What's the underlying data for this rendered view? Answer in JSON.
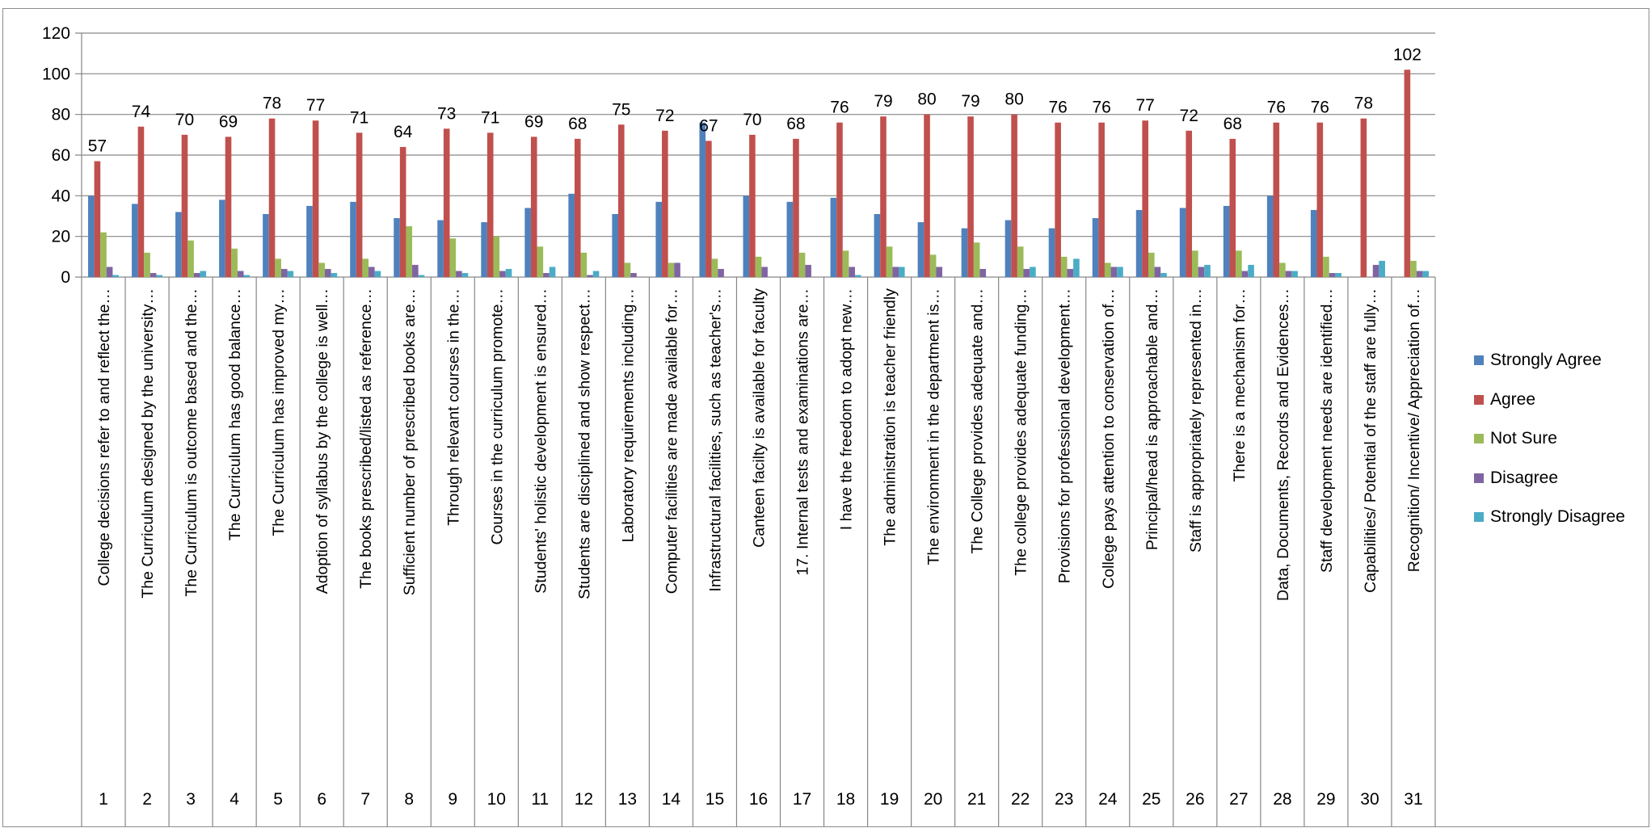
{
  "chart_data": {
    "type": "bar",
    "title": "",
    "xlabel": "",
    "ylabel": "",
    "ylim": [
      0,
      120
    ],
    "yticks": [
      0,
      20,
      40,
      60,
      80,
      100,
      120
    ],
    "grid": true,
    "legend_position": "right",
    "categories": [
      "1",
      "2",
      "3",
      "4",
      "5",
      "6",
      "7",
      "8",
      "9",
      "10",
      "11",
      "12",
      "13",
      "14",
      "15",
      "16",
      "17",
      "18",
      "19",
      "20",
      "21",
      "22",
      "23",
      "24",
      "25",
      "26",
      "27",
      "28",
      "29",
      "30",
      "31"
    ],
    "statements": [
      "College decisions refer to and reflect the…",
      "The Curriculum designed by the university…",
      "The Curriculum is outcome based and the…",
      "The Curriculum has good balance…",
      "The Curriculum has improved my…",
      "Adoption of syllabus by the college is well…",
      "The books prescribed/listed as reference…",
      "Sufficient number of prescribed books are…",
      "Through relevant courses in the…",
      "Courses in the curriculum promote…",
      "Students' holistic development is ensured…",
      "Students are disciplined and show respect…",
      "Laboratory requirements including…",
      "Computer facilities are made available for…",
      "Infrastructural facilities, such as teacher's…",
      "Canteen facilty is available for faculty",
      "17. Internal tests and examinations are…",
      "I have the freedom to adopt new…",
      "The administration is teacher friendly",
      "The environment in the department is…",
      "The College provides adequate and…",
      "The college provides adequate funding…",
      "Provisions for professional development…",
      "College pays attention to conservation of…",
      "Principal/head is approachable and…",
      "Staff is appropriately represented in…",
      "There is a mechanism for…",
      "Data, Documents, Records and Evidences…",
      "Staff development needs are identified…",
      "Capabilities/ Potential of the staff are fully…",
      "Recognition/ Incentive/ Appreciation of…"
    ],
    "series": [
      {
        "name": "Strongly Agree",
        "color": "#4F81BD",
        "values": [
          40,
          36,
          32,
          38,
          31,
          35,
          37,
          29,
          28,
          27,
          34,
          41,
          31,
          37,
          76,
          40,
          37,
          39,
          31,
          27,
          24,
          28,
          24,
          29,
          33,
          34,
          35,
          40,
          33,
          0,
          0
        ]
      },
      {
        "name": "Agree",
        "color": "#C0504D",
        "values": [
          57,
          74,
          70,
          69,
          78,
          77,
          71,
          64,
          73,
          71,
          69,
          68,
          75,
          72,
          67,
          70,
          68,
          76,
          79,
          80,
          79,
          80,
          76,
          76,
          77,
          72,
          68,
          76,
          76,
          78,
          102
        ]
      },
      {
        "name": "Not Sure",
        "color": "#9BBB59",
        "values": [
          22,
          12,
          18,
          14,
          9,
          7,
          9,
          25,
          19,
          20,
          15,
          12,
          7,
          7,
          9,
          10,
          12,
          13,
          15,
          11,
          17,
          15,
          10,
          7,
          12,
          13,
          13,
          7,
          10,
          0,
          8
        ]
      },
      {
        "name": "Disagree",
        "color": "#8064A2",
        "values": [
          5,
          2,
          2,
          3,
          4,
          4,
          5,
          6,
          3,
          3,
          2,
          1,
          2,
          7,
          4,
          5,
          6,
          5,
          5,
          5,
          4,
          4,
          4,
          5,
          5,
          5,
          3,
          3,
          2,
          6,
          3
        ]
      },
      {
        "name": "Strongly Disagree",
        "color": "#4BACC6",
        "values": [
          1,
          1,
          3,
          1,
          3,
          2,
          3,
          1,
          2,
          4,
          5,
          3,
          0,
          0,
          0,
          0,
          0,
          1,
          5,
          0,
          0,
          5,
          9,
          5,
          2,
          6,
          6,
          3,
          2,
          8,
          3
        ]
      }
    ],
    "data_labels_series": "Agree"
  }
}
